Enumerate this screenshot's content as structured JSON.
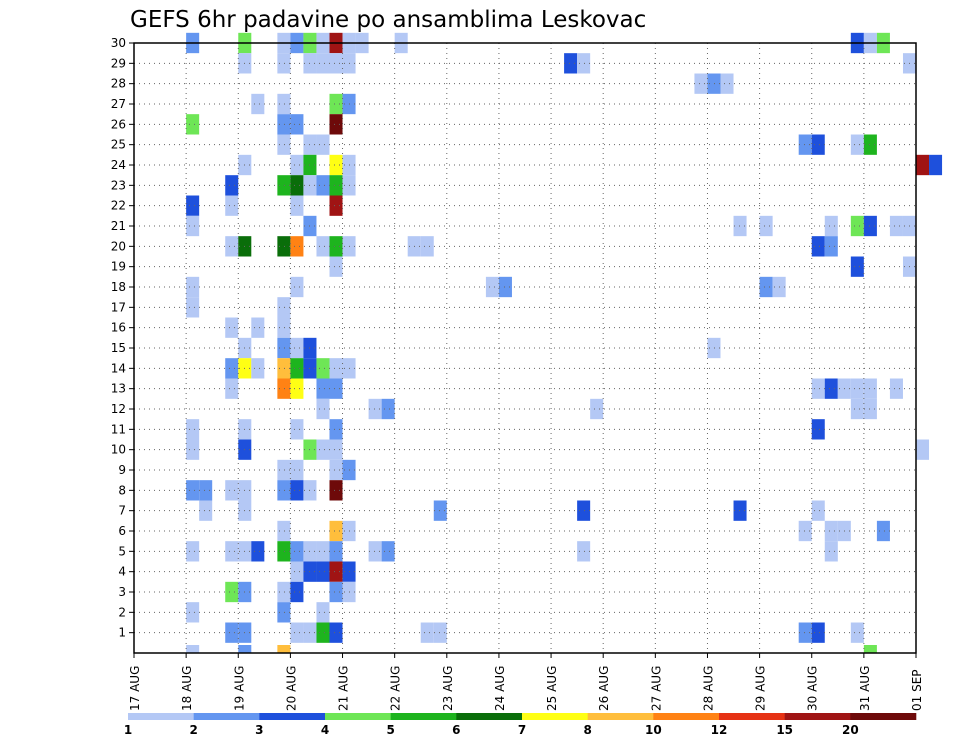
{
  "chart_data": {
    "type": "heatmap",
    "title": "GEFS 6hr padavine po ansamblima Leskovac",
    "xlabel": "",
    "ylabel": "",
    "x_ticks": [
      "17 AUG",
      "18 AUG",
      "19 AUG",
      "20 AUG",
      "21 AUG",
      "22 AUG",
      "23 AUG",
      "24 AUG",
      "25 AUG",
      "26 AUG",
      "27 AUG",
      "28 AUG",
      "29 AUG",
      "30 AUG",
      "31 AUG",
      "01 SEP"
    ],
    "y_ticks": [
      "1",
      "2",
      "3",
      "4",
      "5",
      "6",
      "7",
      "8",
      "9",
      "10",
      "11",
      "12",
      "13",
      "14",
      "15",
      "16",
      "17",
      "18",
      "19",
      "20",
      "21",
      "22",
      "23",
      "24",
      "25",
      "26",
      "27",
      "28",
      "29",
      "30"
    ],
    "x_range": [
      "17 AUG 00Z",
      "01 SEP 00Z"
    ],
    "time_step": "6hr",
    "y_range": [
      0,
      30
    ],
    "grid": true,
    "legend": {
      "position": "bottom",
      "labels": [
        "1",
        "2",
        "3",
        "4",
        "5",
        "6",
        "7",
        "8",
        "10",
        "12",
        "15",
        "20"
      ],
      "colors": [
        "#b4c8f5",
        "#6496f0",
        "#1e50dc",
        "#6ee656",
        "#1eb41e",
        "#0a6e0a",
        "#ffff14",
        "#ffbe3c",
        "#ff8214",
        "#e63214",
        "#a01414",
        "#6e0a0a"
      ]
    },
    "cells": [
      {
        "member": 30,
        "time": "18 AUG 00Z",
        "value": 2
      },
      {
        "member": 30,
        "time": "19 AUG 00Z",
        "value": 4
      },
      {
        "member": 30,
        "time": "19 AUG 18Z",
        "value": 1
      },
      {
        "member": 30,
        "time": "20 AUG 00Z",
        "value": 2
      },
      {
        "member": 30,
        "time": "20 AUG 06Z",
        "value": 4
      },
      {
        "member": 30,
        "time": "20 AUG 12Z",
        "value": 1
      },
      {
        "member": 30,
        "time": "20 AUG 18Z",
        "value": 15
      },
      {
        "member": 30,
        "time": "21 AUG 00Z",
        "value": 1
      },
      {
        "member": 30,
        "time": "21 AUG 06Z",
        "value": 1
      },
      {
        "member": 30,
        "time": "22 AUG 00Z",
        "value": 1
      },
      {
        "member": 30,
        "time": "30 AUG 18Z",
        "value": 3
      },
      {
        "member": 30,
        "time": "31 AUG 00Z",
        "value": 1
      },
      {
        "member": 30,
        "time": "31 AUG 06Z",
        "value": 4
      },
      {
        "member": 29,
        "time": "19 AUG 00Z",
        "value": 1
      },
      {
        "member": 29,
        "time": "19 AUG 18Z",
        "value": 1
      },
      {
        "member": 29,
        "time": "20 AUG 06Z",
        "value": 1
      },
      {
        "member": 29,
        "time": "20 AUG 12Z",
        "value": 1
      },
      {
        "member": 29,
        "time": "20 AUG 18Z",
        "value": 1
      },
      {
        "member": 29,
        "time": "21 AUG 00Z",
        "value": 1
      },
      {
        "member": 29,
        "time": "25 AUG 06Z",
        "value": 3
      },
      {
        "member": 29,
        "time": "25 AUG 12Z",
        "value": 1
      },
      {
        "member": 29,
        "time": "31 AUG 18Z",
        "value": 1
      },
      {
        "member": 28,
        "time": "27 AUG 18Z",
        "value": 1
      },
      {
        "member": 28,
        "time": "28 AUG 00Z",
        "value": 2
      },
      {
        "member": 28,
        "time": "28 AUG 06Z",
        "value": 1
      },
      {
        "member": 27,
        "time": "19 AUG 06Z",
        "value": 1
      },
      {
        "member": 27,
        "time": "19 AUG 18Z",
        "value": 1
      },
      {
        "member": 27,
        "time": "20 AUG 18Z",
        "value": 4
      },
      {
        "member": 27,
        "time": "21 AUG 00Z",
        "value": 2
      },
      {
        "member": 26,
        "time": "18 AUG 00Z",
        "value": 4
      },
      {
        "member": 26,
        "time": "19 AUG 18Z",
        "value": 2
      },
      {
        "member": 26,
        "time": "20 AUG 00Z",
        "value": 2
      },
      {
        "member": 26,
        "time": "20 AUG 18Z",
        "value": 20
      },
      {
        "member": 25,
        "time": "19 AUG 18Z",
        "value": 1
      },
      {
        "member": 25,
        "time": "20 AUG 06Z",
        "value": 1
      },
      {
        "member": 25,
        "time": "20 AUG 12Z",
        "value": 1
      },
      {
        "member": 25,
        "time": "29 AUG 18Z",
        "value": 2
      },
      {
        "member": 25,
        "time": "30 AUG 00Z",
        "value": 3
      },
      {
        "member": 25,
        "time": "30 AUG 18Z",
        "value": 1
      },
      {
        "member": 25,
        "time": "31 AUG 00Z",
        "value": 5
      },
      {
        "member": 24,
        "time": "19 AUG 00Z",
        "value": 1
      },
      {
        "member": 24,
        "time": "20 AUG 00Z",
        "value": 1
      },
      {
        "member": 24,
        "time": "20 AUG 06Z",
        "value": 5
      },
      {
        "member": 24,
        "time": "20 AUG 18Z",
        "value": 7
      },
      {
        "member": 24,
        "time": "21 AUG 00Z",
        "value": 1
      },
      {
        "member": 24,
        "time": "01 SEP 00Z",
        "value": 15
      },
      {
        "member": 24,
        "time": "01 SEP 06Z",
        "value": 3
      },
      {
        "member": 23,
        "time": "18 AUG 18Z",
        "value": 3
      },
      {
        "member": 23,
        "time": "19 AUG 18Z",
        "value": 5
      },
      {
        "member": 23,
        "time": "20 AUG 00Z",
        "value": 6
      },
      {
        "member": 23,
        "time": "20 AUG 06Z",
        "value": 1
      },
      {
        "member": 23,
        "time": "20 AUG 12Z",
        "value": 2
      },
      {
        "member": 23,
        "time": "20 AUG 18Z",
        "value": 5
      },
      {
        "member": 23,
        "time": "21 AUG 00Z",
        "value": 1
      },
      {
        "member": 22,
        "time": "18 AUG 00Z",
        "value": 3
      },
      {
        "member": 22,
        "time": "18 AUG 18Z",
        "value": 1
      },
      {
        "member": 22,
        "time": "20 AUG 00Z",
        "value": 1
      },
      {
        "member": 22,
        "time": "20 AUG 18Z",
        "value": 15
      },
      {
        "member": 21,
        "time": "18 AUG 00Z",
        "value": 1
      },
      {
        "member": 21,
        "time": "20 AUG 06Z",
        "value": 2
      },
      {
        "member": 21,
        "time": "28 AUG 12Z",
        "value": 1
      },
      {
        "member": 21,
        "time": "29 AUG 00Z",
        "value": 1
      },
      {
        "member": 21,
        "time": "30 AUG 06Z",
        "value": 1
      },
      {
        "member": 21,
        "time": "30 AUG 18Z",
        "value": 4
      },
      {
        "member": 21,
        "time": "31 AUG 00Z",
        "value": 3
      },
      {
        "member": 21,
        "time": "31 AUG 12Z",
        "value": 1
      },
      {
        "member": 21,
        "time": "31 AUG 18Z",
        "value": 1
      },
      {
        "member": 20,
        "time": "18 AUG 18Z",
        "value": 1
      },
      {
        "member": 20,
        "time": "19 AUG 00Z",
        "value": 6
      },
      {
        "member": 20,
        "time": "19 AUG 18Z",
        "value": 6
      },
      {
        "member": 20,
        "time": "20 AUG 00Z",
        "value": 10
      },
      {
        "member": 20,
        "time": "20 AUG 12Z",
        "value": 1
      },
      {
        "member": 20,
        "time": "20 AUG 18Z",
        "value": 5
      },
      {
        "member": 20,
        "time": "21 AUG 00Z",
        "value": 1
      },
      {
        "member": 20,
        "time": "22 AUG 06Z",
        "value": 1
      },
      {
        "member": 20,
        "time": "22 AUG 12Z",
        "value": 1
      },
      {
        "member": 20,
        "time": "30 AUG 00Z",
        "value": 3
      },
      {
        "member": 20,
        "time": "30 AUG 06Z",
        "value": 2
      },
      {
        "member": 19,
        "time": "20 AUG 18Z",
        "value": 1
      },
      {
        "member": 19,
        "time": "30 AUG 18Z",
        "value": 3
      },
      {
        "member": 19,
        "time": "31 AUG 18Z",
        "value": 1
      },
      {
        "member": 18,
        "time": "18 AUG 00Z",
        "value": 1
      },
      {
        "member": 18,
        "time": "20 AUG 00Z",
        "value": 1
      },
      {
        "member": 18,
        "time": "23 AUG 18Z",
        "value": 1
      },
      {
        "member": 18,
        "time": "24 AUG 00Z",
        "value": 2
      },
      {
        "member": 18,
        "time": "29 AUG 00Z",
        "value": 2
      },
      {
        "member": 18,
        "time": "29 AUG 06Z",
        "value": 1
      },
      {
        "member": 17,
        "time": "18 AUG 00Z",
        "value": 1
      },
      {
        "member": 17,
        "time": "19 AUG 18Z",
        "value": 1
      },
      {
        "member": 16,
        "time": "18 AUG 18Z",
        "value": 1
      },
      {
        "member": 16,
        "time": "19 AUG 06Z",
        "value": 1
      },
      {
        "member": 16,
        "time": "19 AUG 18Z",
        "value": 1
      },
      {
        "member": 15,
        "time": "19 AUG 00Z",
        "value": 1
      },
      {
        "member": 15,
        "time": "19 AUG 18Z",
        "value": 2
      },
      {
        "member": 15,
        "time": "20 AUG 00Z",
        "value": 1
      },
      {
        "member": 15,
        "time": "20 AUG 06Z",
        "value": 3
      },
      {
        "member": 15,
        "time": "28 AUG 00Z",
        "value": 1
      },
      {
        "member": 14,
        "time": "18 AUG 18Z",
        "value": 2
      },
      {
        "member": 14,
        "time": "19 AUG 00Z",
        "value": 7
      },
      {
        "member": 14,
        "time": "19 AUG 06Z",
        "value": 1
      },
      {
        "member": 14,
        "time": "19 AUG 18Z",
        "value": 8
      },
      {
        "member": 14,
        "time": "20 AUG 00Z",
        "value": 5
      },
      {
        "member": 14,
        "time": "20 AUG 06Z",
        "value": 3
      },
      {
        "member": 14,
        "time": "20 AUG 12Z",
        "value": 4
      },
      {
        "member": 14,
        "time": "20 AUG 18Z",
        "value": 1
      },
      {
        "member": 14,
        "time": "21 AUG 00Z",
        "value": 1
      },
      {
        "member": 13,
        "time": "18 AUG 18Z",
        "value": 1
      },
      {
        "member": 13,
        "time": "19 AUG 18Z",
        "value": 10
      },
      {
        "member": 13,
        "time": "20 AUG 00Z",
        "value": 7
      },
      {
        "member": 13,
        "time": "20 AUG 12Z",
        "value": 2
      },
      {
        "member": 13,
        "time": "20 AUG 18Z",
        "value": 2
      },
      {
        "member": 13,
        "time": "30 AUG 00Z",
        "value": 1
      },
      {
        "member": 13,
        "time": "30 AUG 06Z",
        "value": 3
      },
      {
        "member": 13,
        "time": "30 AUG 12Z",
        "value": 1
      },
      {
        "member": 13,
        "time": "30 AUG 18Z",
        "value": 1
      },
      {
        "member": 13,
        "time": "31 AUG 00Z",
        "value": 1
      },
      {
        "member": 13,
        "time": "31 AUG 12Z",
        "value": 1
      },
      {
        "member": 12,
        "time": "20 AUG 12Z",
        "value": 1
      },
      {
        "member": 12,
        "time": "21 AUG 12Z",
        "value": 1
      },
      {
        "member": 12,
        "time": "21 AUG 18Z",
        "value": 2
      },
      {
        "member": 12,
        "time": "25 AUG 18Z",
        "value": 1
      },
      {
        "member": 12,
        "time": "30 AUG 18Z",
        "value": 1
      },
      {
        "member": 12,
        "time": "31 AUG 00Z",
        "value": 1
      },
      {
        "member": 11,
        "time": "18 AUG 00Z",
        "value": 1
      },
      {
        "member": 11,
        "time": "19 AUG 00Z",
        "value": 1
      },
      {
        "member": 11,
        "time": "20 AUG 00Z",
        "value": 1
      },
      {
        "member": 11,
        "time": "20 AUG 18Z",
        "value": 2
      },
      {
        "member": 11,
        "time": "30 AUG 00Z",
        "value": 3
      },
      {
        "member": 10,
        "time": "18 AUG 00Z",
        "value": 1
      },
      {
        "member": 10,
        "time": "19 AUG 00Z",
        "value": 3
      },
      {
        "member": 10,
        "time": "20 AUG 06Z",
        "value": 4
      },
      {
        "member": 10,
        "time": "20 AUG 12Z",
        "value": 1
      },
      {
        "member": 10,
        "time": "20 AUG 18Z",
        "value": 1
      },
      {
        "member": 10,
        "time": "01 SEP 00Z",
        "value": 1
      },
      {
        "member": 9,
        "time": "19 AUG 18Z",
        "value": 1
      },
      {
        "member": 9,
        "time": "20 AUG 00Z",
        "value": 1
      },
      {
        "member": 9,
        "time": "20 AUG 18Z",
        "value": 1
      },
      {
        "member": 9,
        "time": "21 AUG 00Z",
        "value": 2
      },
      {
        "member": 8,
        "time": "18 AUG 00Z",
        "value": 2
      },
      {
        "member": 8,
        "time": "18 AUG 06Z",
        "value": 2
      },
      {
        "member": 8,
        "time": "18 AUG 18Z",
        "value": 1
      },
      {
        "member": 8,
        "time": "19 AUG 00Z",
        "value": 1
      },
      {
        "member": 8,
        "time": "19 AUG 18Z",
        "value": 2
      },
      {
        "member": 8,
        "time": "20 AUG 00Z",
        "value": 3
      },
      {
        "member": 8,
        "time": "20 AUG 06Z",
        "value": 1
      },
      {
        "member": 8,
        "time": "20 AUG 18Z",
        "value": 20
      },
      {
        "member": 7,
        "time": "18 AUG 06Z",
        "value": 1
      },
      {
        "member": 7,
        "time": "19 AUG 00Z",
        "value": 1
      },
      {
        "member": 7,
        "time": "22 AUG 18Z",
        "value": 2
      },
      {
        "member": 7,
        "time": "25 AUG 12Z",
        "value": 3
      },
      {
        "member": 7,
        "time": "28 AUG 12Z",
        "value": 3
      },
      {
        "member": 7,
        "time": "30 AUG 00Z",
        "value": 1
      },
      {
        "member": 6,
        "time": "19 AUG 18Z",
        "value": 1
      },
      {
        "member": 6,
        "time": "20 AUG 18Z",
        "value": 8
      },
      {
        "member": 6,
        "time": "21 AUG 00Z",
        "value": 1
      },
      {
        "member": 6,
        "time": "29 AUG 18Z",
        "value": 1
      },
      {
        "member": 6,
        "time": "30 AUG 06Z",
        "value": 1
      },
      {
        "member": 6,
        "time": "30 AUG 12Z",
        "value": 1
      },
      {
        "member": 6,
        "time": "31 AUG 06Z",
        "value": 2
      },
      {
        "member": 5,
        "time": "18 AUG 00Z",
        "value": 1
      },
      {
        "member": 5,
        "time": "18 AUG 18Z",
        "value": 1
      },
      {
        "member": 5,
        "time": "19 AUG 00Z",
        "value": 1
      },
      {
        "member": 5,
        "time": "19 AUG 06Z",
        "value": 3
      },
      {
        "member": 5,
        "time": "19 AUG 18Z",
        "value": 5
      },
      {
        "member": 5,
        "time": "20 AUG 00Z",
        "value": 2
      },
      {
        "member": 5,
        "time": "20 AUG 06Z",
        "value": 1
      },
      {
        "member": 5,
        "time": "20 AUG 12Z",
        "value": 1
      },
      {
        "member": 5,
        "time": "20 AUG 18Z",
        "value": 2
      },
      {
        "member": 5,
        "time": "21 AUG 12Z",
        "value": 1
      },
      {
        "member": 5,
        "time": "21 AUG 18Z",
        "value": 2
      },
      {
        "member": 5,
        "time": "25 AUG 12Z",
        "value": 1
      },
      {
        "member": 5,
        "time": "30 AUG 06Z",
        "value": 1
      },
      {
        "member": 4,
        "time": "20 AUG 00Z",
        "value": 1
      },
      {
        "member": 4,
        "time": "20 AUG 06Z",
        "value": 3
      },
      {
        "member": 4,
        "time": "20 AUG 12Z",
        "value": 3
      },
      {
        "member": 4,
        "time": "20 AUG 18Z",
        "value": 15
      },
      {
        "member": 4,
        "time": "21 AUG 00Z",
        "value": 3
      },
      {
        "member": 3,
        "time": "18 AUG 18Z",
        "value": 4
      },
      {
        "member": 3,
        "time": "19 AUG 00Z",
        "value": 2
      },
      {
        "member": 3,
        "time": "19 AUG 18Z",
        "value": 1
      },
      {
        "member": 3,
        "time": "20 AUG 00Z",
        "value": 3
      },
      {
        "member": 3,
        "time": "20 AUG 18Z",
        "value": 2
      },
      {
        "member": 3,
        "time": "21 AUG 00Z",
        "value": 1
      },
      {
        "member": 2,
        "time": "18 AUG 00Z",
        "value": 1
      },
      {
        "member": 2,
        "time": "19 AUG 18Z",
        "value": 2
      },
      {
        "member": 2,
        "time": "20 AUG 12Z",
        "value": 1
      },
      {
        "member": 1,
        "time": "18 AUG 18Z",
        "value": 2
      },
      {
        "member": 1,
        "time": "19 AUG 00Z",
        "value": 2
      },
      {
        "member": 1,
        "time": "20 AUG 00Z",
        "value": 1
      },
      {
        "member": 1,
        "time": "20 AUG 06Z",
        "value": 1
      },
      {
        "member": 1,
        "time": "20 AUG 12Z",
        "value": 5
      },
      {
        "member": 1,
        "time": "20 AUG 18Z",
        "value": 3
      },
      {
        "member": 1,
        "time": "22 AUG 12Z",
        "value": 1
      },
      {
        "member": 1,
        "time": "22 AUG 18Z",
        "value": 1
      },
      {
        "member": 1,
        "time": "29 AUG 18Z",
        "value": 2
      },
      {
        "member": 1,
        "time": "30 AUG 00Z",
        "value": 3
      },
      {
        "member": 1,
        "time": "30 AUG 18Z",
        "value": 1
      },
      {
        "member": 0,
        "time": "18 AUG 00Z",
        "value": 1
      },
      {
        "member": 0,
        "time": "19 AUG 00Z",
        "value": 2
      },
      {
        "member": 0,
        "time": "19 AUG 18Z",
        "value": 8
      },
      {
        "member": 0,
        "time": "31 AUG 00Z",
        "value": 4
      }
    ]
  }
}
